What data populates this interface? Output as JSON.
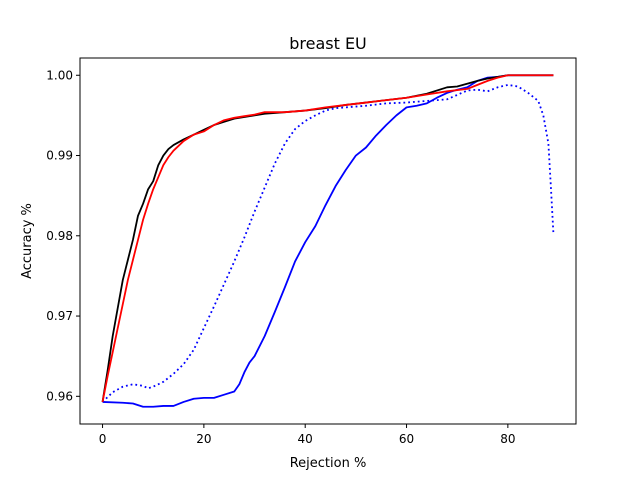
{
  "chart_data": {
    "type": "line",
    "title": "breast EU",
    "xlabel": "Rejection %",
    "ylabel": "Accuracy %",
    "xlim": [
      -4.45,
      93.45
    ],
    "ylim": [
      0.95655,
      1.00215
    ],
    "xticks": [
      0,
      20,
      40,
      60,
      80
    ],
    "xtick_labels": [
      "0",
      "20",
      "40",
      "60",
      "80"
    ],
    "yticks": [
      0.96,
      0.97,
      0.98,
      0.99,
      1.0
    ],
    "ytick_labels": [
      "0.96",
      "0.97",
      "0.98",
      "0.99",
      "1.00"
    ],
    "grid": false,
    "legend": null,
    "series": [
      {
        "color": "#0000ff",
        "style": "dotted",
        "points": [
          [
            0,
            0.9593
          ],
          [
            2,
            0.9605
          ],
          [
            4,
            0.9612
          ],
          [
            6,
            0.9615
          ],
          [
            8,
            0.9613
          ],
          [
            9,
            0.961
          ],
          [
            10,
            0.9612
          ],
          [
            12,
            0.9618
          ],
          [
            14,
            0.9628
          ],
          [
            16,
            0.964
          ],
          [
            18,
            0.9658
          ],
          [
            20,
            0.9685
          ],
          [
            22,
            0.9712
          ],
          [
            24,
            0.974
          ],
          [
            26,
            0.9768
          ],
          [
            28,
            0.9798
          ],
          [
            30,
            0.983
          ],
          [
            32,
            0.986
          ],
          [
            34,
            0.989
          ],
          [
            36,
            0.9915
          ],
          [
            38,
            0.9933
          ],
          [
            40,
            0.9943
          ],
          [
            42,
            0.995
          ],
          [
            44,
            0.9956
          ],
          [
            46,
            0.9959
          ],
          [
            48,
            0.996
          ],
          [
            52,
            0.9962
          ],
          [
            56,
            0.9965
          ],
          [
            60,
            0.9966
          ],
          [
            64,
            0.9968
          ],
          [
            68,
            0.997
          ],
          [
            72,
            0.9981
          ],
          [
            74,
            0.9982
          ],
          [
            76,
            0.998
          ],
          [
            78,
            0.9985
          ],
          [
            80,
            0.9988
          ],
          [
            82,
            0.9986
          ],
          [
            84,
            0.9978
          ],
          [
            86,
            0.9968
          ],
          [
            87,
            0.995
          ],
          [
            88,
            0.9915
          ],
          [
            88.5,
            0.986
          ],
          [
            89,
            0.9802
          ]
        ]
      },
      {
        "color": "#0000ff",
        "style": "solid",
        "points": [
          [
            0,
            0.9593
          ],
          [
            4,
            0.9592
          ],
          [
            6,
            0.9591
          ],
          [
            8,
            0.9587
          ],
          [
            10,
            0.9587
          ],
          [
            12,
            0.9588
          ],
          [
            14,
            0.9588
          ],
          [
            16,
            0.9593
          ],
          [
            18,
            0.9597
          ],
          [
            20,
            0.9598
          ],
          [
            22,
            0.9598
          ],
          [
            24,
            0.9602
          ],
          [
            26,
            0.9606
          ],
          [
            27,
            0.9615
          ],
          [
            28,
            0.963
          ],
          [
            29,
            0.9642
          ],
          [
            30,
            0.965
          ],
          [
            32,
            0.9675
          ],
          [
            34,
            0.9705
          ],
          [
            36,
            0.9736
          ],
          [
            38,
            0.9768
          ],
          [
            40,
            0.9792
          ],
          [
            42,
            0.9812
          ],
          [
            44,
            0.9838
          ],
          [
            46,
            0.9862
          ],
          [
            48,
            0.9882
          ],
          [
            50,
            0.99
          ],
          [
            52,
            0.991
          ],
          [
            54,
            0.9925
          ],
          [
            56,
            0.9938
          ],
          [
            58,
            0.995
          ],
          [
            60,
            0.996
          ],
          [
            62,
            0.9962
          ],
          [
            64,
            0.9965
          ],
          [
            66,
            0.9972
          ],
          [
            68,
            0.9978
          ],
          [
            70,
            0.9982
          ],
          [
            72,
            0.9985
          ],
          [
            74,
            0.9993
          ],
          [
            76,
            0.9997
          ],
          [
            78,
            0.9998
          ],
          [
            80,
            1.0
          ],
          [
            89,
            1.0
          ]
        ]
      },
      {
        "color": "#000000",
        "style": "solid",
        "points": [
          [
            0,
            0.9593
          ],
          [
            1,
            0.9632
          ],
          [
            2,
            0.9675
          ],
          [
            3,
            0.971
          ],
          [
            4,
            0.9745
          ],
          [
            5,
            0.977
          ],
          [
            6,
            0.9795
          ],
          [
            7,
            0.9825
          ],
          [
            8,
            0.984
          ],
          [
            9,
            0.9858
          ],
          [
            10,
            0.9868
          ],
          [
            11,
            0.9888
          ],
          [
            12,
            0.99
          ],
          [
            13,
            0.9908
          ],
          [
            14,
            0.9913
          ],
          [
            16,
            0.992
          ],
          [
            18,
            0.9926
          ],
          [
            20,
            0.9932
          ],
          [
            22,
            0.9938
          ],
          [
            24,
            0.9942
          ],
          [
            26,
            0.9946
          ],
          [
            28,
            0.9948
          ],
          [
            30,
            0.995
          ],
          [
            32,
            0.9952
          ],
          [
            36,
            0.9954
          ],
          [
            40,
            0.9956
          ],
          [
            44,
            0.9959
          ],
          [
            48,
            0.9963
          ],
          [
            52,
            0.9966
          ],
          [
            56,
            0.9969
          ],
          [
            60,
            0.9972
          ],
          [
            64,
            0.9977
          ],
          [
            68,
            0.9985
          ],
          [
            70,
            0.9986
          ],
          [
            74,
            0.9993
          ],
          [
            76,
            0.9996
          ],
          [
            78,
            0.9998
          ],
          [
            80,
            1.0
          ],
          [
            89,
            1.0
          ]
        ]
      },
      {
        "color": "#ff0000",
        "style": "solid",
        "points": [
          [
            0,
            0.9593
          ],
          [
            1,
            0.9625
          ],
          [
            2,
            0.9655
          ],
          [
            3,
            0.9685
          ],
          [
            4,
            0.9715
          ],
          [
            5,
            0.9745
          ],
          [
            6,
            0.977
          ],
          [
            7,
            0.9795
          ],
          [
            8,
            0.982
          ],
          [
            9,
            0.984
          ],
          [
            10,
            0.9858
          ],
          [
            11,
            0.9873
          ],
          [
            12,
            0.9888
          ],
          [
            13,
            0.9898
          ],
          [
            14,
            0.9906
          ],
          [
            16,
            0.9918
          ],
          [
            18,
            0.9926
          ],
          [
            20,
            0.993
          ],
          [
            22,
            0.9938
          ],
          [
            24,
            0.9944
          ],
          [
            26,
            0.9947
          ],
          [
            28,
            0.9949
          ],
          [
            30,
            0.9951
          ],
          [
            32,
            0.9954
          ],
          [
            36,
            0.9954
          ],
          [
            40,
            0.9956
          ],
          [
            44,
            0.996
          ],
          [
            48,
            0.9963
          ],
          [
            52,
            0.9966
          ],
          [
            56,
            0.9969
          ],
          [
            60,
            0.9972
          ],
          [
            64,
            0.9976
          ],
          [
            68,
            0.998
          ],
          [
            72,
            0.9983
          ],
          [
            74,
            0.9988
          ],
          [
            76,
            0.9993
          ],
          [
            78,
            0.9997
          ],
          [
            80,
            1.0
          ],
          [
            89,
            1.0
          ]
        ]
      }
    ]
  }
}
